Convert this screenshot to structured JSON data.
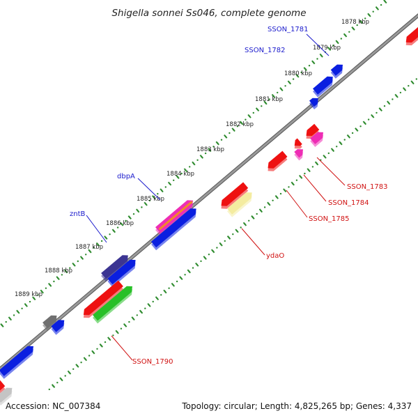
{
  "title": "Shigella sonnei Ss046, complete genome",
  "footer": {
    "accession": "Accession: NC_007384",
    "summary": "Topology: circular; Length: 4,825,265 bp; Genes: 4,337"
  },
  "colors": {
    "backbone": "#888888",
    "tick_track": "#2e8b2e",
    "red": "#ee1111",
    "blue": "#0a1fe0",
    "navy": "#3c3592",
    "magenta": "#ee2db5",
    "green": "#28c028",
    "pale_yellow": "#f4eca0",
    "gray": "#707070",
    "light_gray": "#c4c4c4",
    "orange": "#f08a2a",
    "blue_label": "#1a1acc",
    "red_label": "#d01010"
  },
  "kbp_labels": [
    "1878 kbp",
    "1879 kbp",
    "1880 kbp",
    "1881 kbp",
    "1882 kbp",
    "1883 kbp",
    "1884 kbp",
    "1885 kbp",
    "1886 kbp",
    "1887 kbp",
    "1888 kbp",
    "1889 kbp"
  ],
  "gene_labels": {
    "sson_1781": "SSON_1781",
    "sson_1782": "SSON_1782",
    "dbpa": "dbpA",
    "zntb": "zntB",
    "sson_1783": "SSON_1783",
    "sson_1784": "SSON_1784",
    "sson_1785": "SSON_1785",
    "ydao": "ydaO",
    "sson_1790": "SSON_1790"
  }
}
